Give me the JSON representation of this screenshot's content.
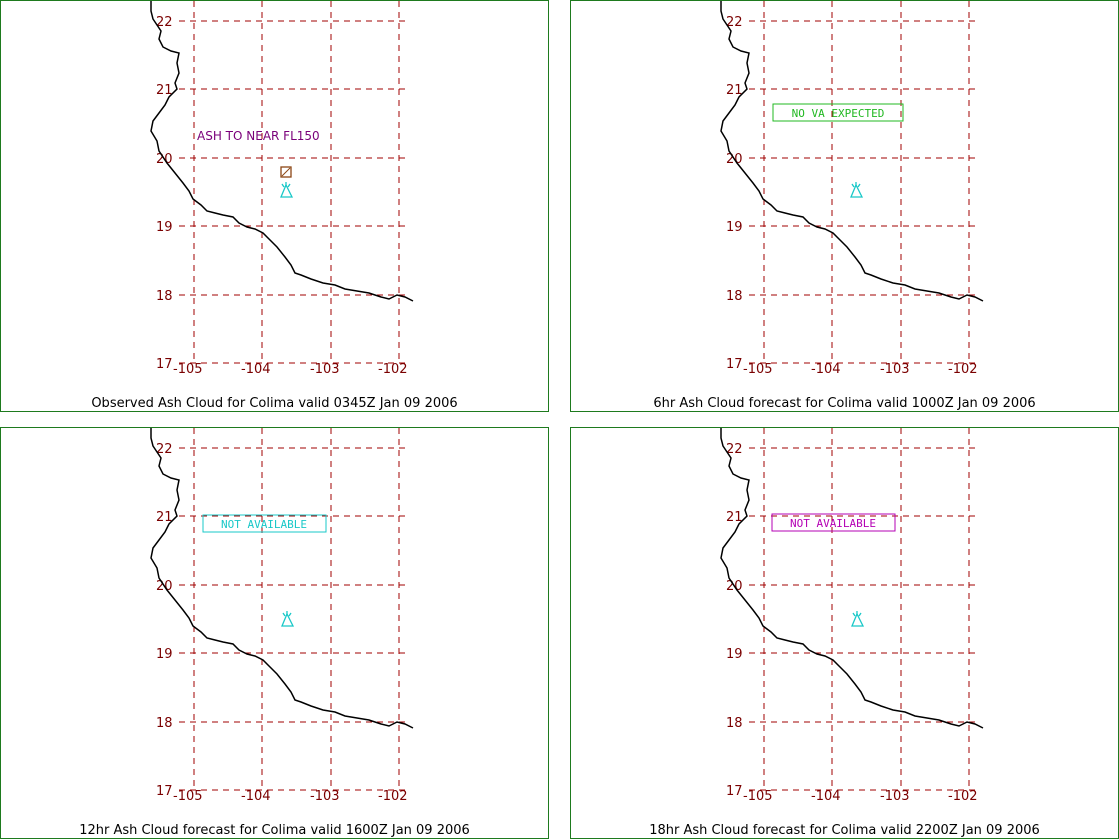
{
  "map_labels": {
    "lat": [
      "22",
      "21",
      "20",
      "19",
      "18",
      "17"
    ],
    "lon": [
      "-105",
      "-104",
      "-103",
      "-102"
    ]
  },
  "panels": [
    {
      "caption": "Observed Ash Cloud for Colima valid 0345Z Jan 09 2006",
      "annotation": "ASH TO NEAR FL150",
      "annotation_color": "#7a007a"
    },
    {
      "caption": "6hr Ash Cloud forecast for Colima valid 1000Z Jan 09 2006",
      "annotation": "NO VA EXPECTED",
      "annotation_color": "#22b822"
    },
    {
      "caption": "12hr Ash Cloud forecast for Colima valid 1600Z Jan 09 2006",
      "annotation": "NOT AVAILABLE",
      "annotation_color": "#19c8c8"
    },
    {
      "caption": "18hr Ash Cloud forecast for Colima valid 2200Z Jan 09 2006",
      "annotation": "NOT AVAILABLE",
      "annotation_color": "#b400b4"
    }
  ],
  "colors": {
    "grid": "#a00000",
    "coast": "#000000",
    "volcano": "#19c8c8",
    "ash_square": "#8b4513",
    "border": "#1e7a1e"
  },
  "icons": {
    "volcano": "volcano-icon",
    "ash_observation": "ash-observation-square-icon"
  }
}
